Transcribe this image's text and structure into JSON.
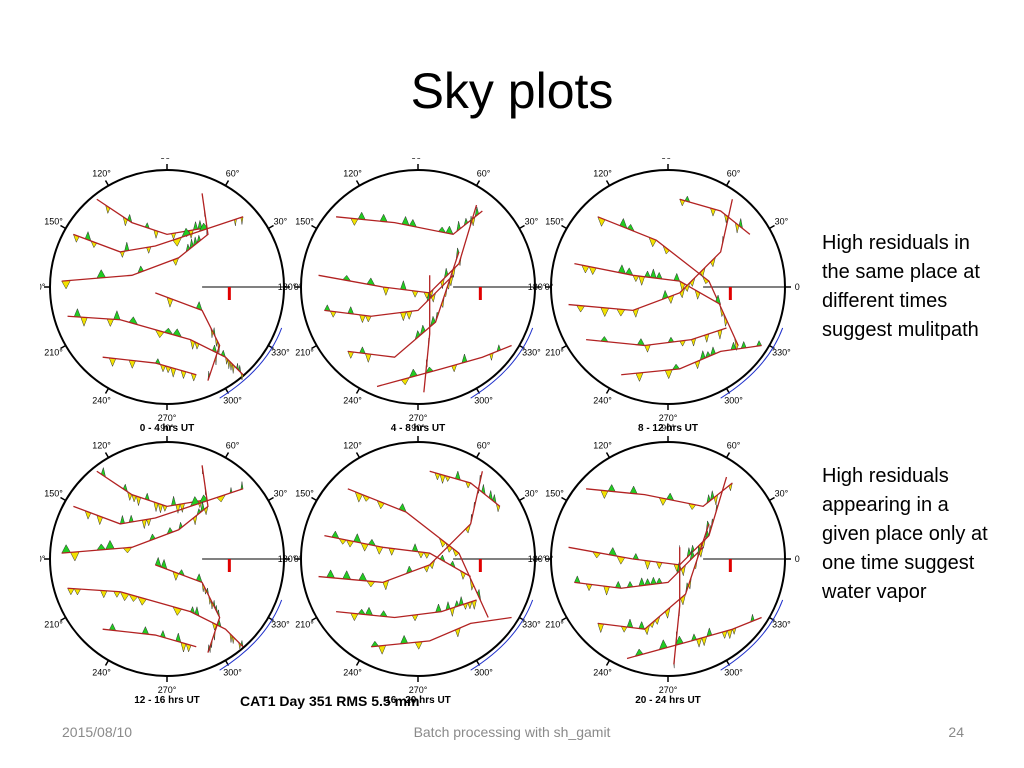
{
  "slide": {
    "title": "Sky plots",
    "notes": [
      "High residuals in the same place at different times suggest mulitpath",
      "High residuals appearing in a given place only at one time suggest water vapor"
    ]
  },
  "figure": {
    "caption": "CAT1  Day 351  RMS 5.5 mm",
    "azimuth_labels": [
      "90°",
      "60°",
      "30°",
      "0°",
      "330°",
      "300°",
      "270°",
      "240°",
      "210°",
      "180°",
      "150°",
      "120°"
    ],
    "panels": [
      {
        "label": "0 - 4 hrs UT"
      },
      {
        "label": "4 - 8 hrs UT"
      },
      {
        "label": "8 - 12 hrs UT"
      },
      {
        "label": "12 - 16 hrs UT"
      },
      {
        "label": "16 - 20 hrs UT"
      },
      {
        "label": "20 - 24 hrs UT"
      }
    ],
    "colors": {
      "track": "#b22222",
      "positive_residual": "#22cc22",
      "negative_residual": "#f2e200",
      "low_elevation": "#2233cc",
      "scale_bar": "#e00000"
    }
  },
  "footer": {
    "date": "2015/08/10",
    "center": "Batch processing with sh_gamit",
    "page": "24"
  }
}
